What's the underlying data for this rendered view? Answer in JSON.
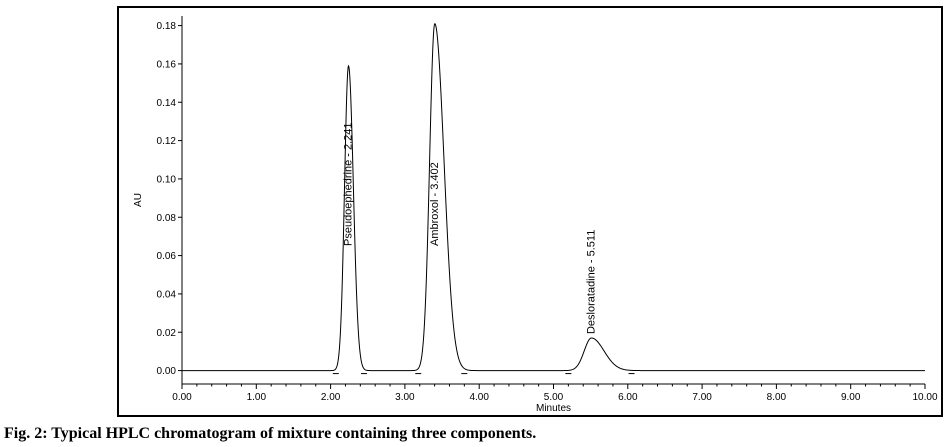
{
  "caption": "Fig. 2: Typical HPLC chromatogram of mixture containing three components.",
  "chart_data": {
    "type": "line",
    "title": "",
    "xlabel": "Minutes",
    "ylabel": "AU",
    "xlim": [
      0,
      10
    ],
    "ylim": [
      -0.007,
      0.185
    ],
    "x_ticks": [
      "0.00",
      "1.00",
      "2.00",
      "3.00",
      "4.00",
      "5.00",
      "6.00",
      "7.00",
      "8.00",
      "9.00",
      "10.00"
    ],
    "y_ticks": [
      "0.00",
      "0.02",
      "0.04",
      "0.06",
      "0.08",
      "0.10",
      "0.12",
      "0.14",
      "0.16",
      "0.18"
    ],
    "grid": false,
    "baseline": 0.0,
    "peaks": [
      {
        "name": "Pseudoephedrine",
        "retention_time": 2.241,
        "label": "Pseudoephedrine - 2.241",
        "height": 0.159,
        "start": 2.07,
        "end": 2.45
      },
      {
        "name": "Ambroxol",
        "retention_time": 3.402,
        "label": "Ambroxol - 3.402",
        "height": 0.181,
        "start": 3.18,
        "end": 3.8
      },
      {
        "name": "Desloratadine",
        "retention_time": 5.511,
        "label": "Desloratadine - 5.511",
        "height": 0.017,
        "start": 5.2,
        "end": 6.05
      }
    ],
    "series_color": "#000000"
  }
}
